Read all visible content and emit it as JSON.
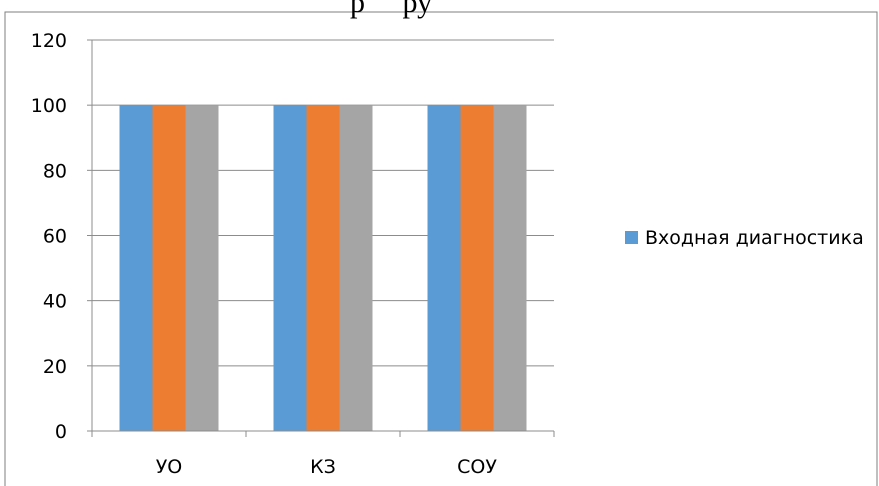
{
  "chart_data": {
    "type": "bar",
    "title": "р     ру",
    "categories": [
      "УО",
      "КЗ",
      "СОУ"
    ],
    "series": [
      {
        "name": "Входная диагностика",
        "values": [
          100,
          100,
          100
        ],
        "color": "#5B9BD5"
      },
      {
        "values": [
          100,
          100,
          100
        ],
        "color": "#ED7D31"
      },
      {
        "values": [
          100,
          100,
          100
        ],
        "color": "#A5A5A5"
      }
    ],
    "ylim": [
      0,
      120
    ],
    "yticks": [
      0,
      20,
      40,
      60,
      80,
      100,
      120
    ],
    "grid": true,
    "legend_position": "right"
  }
}
